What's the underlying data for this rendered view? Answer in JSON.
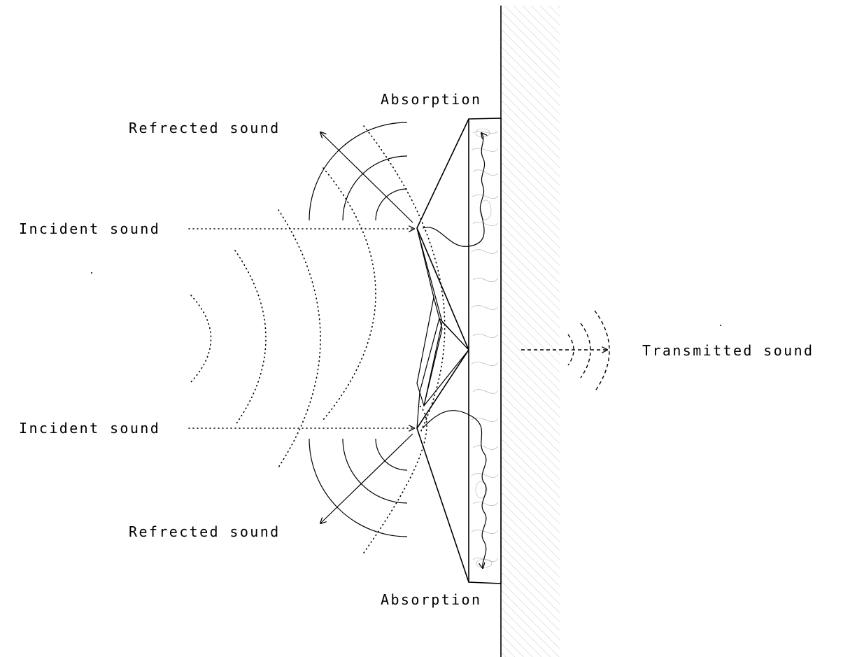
{
  "labels": {
    "absorption_top": "Absorption",
    "absorption_bottom": "Absorption",
    "reflected_top": "Refrected sound",
    "reflected_bottom": "Refrected sound",
    "incident_top": "Incident sound",
    "incident_bottom": "Incident sound",
    "transmitted": "Transmitted sound"
  },
  "colors": {
    "ink": "#000000",
    "hatch": "#c8c8c8",
    "background": "#ffffff"
  }
}
